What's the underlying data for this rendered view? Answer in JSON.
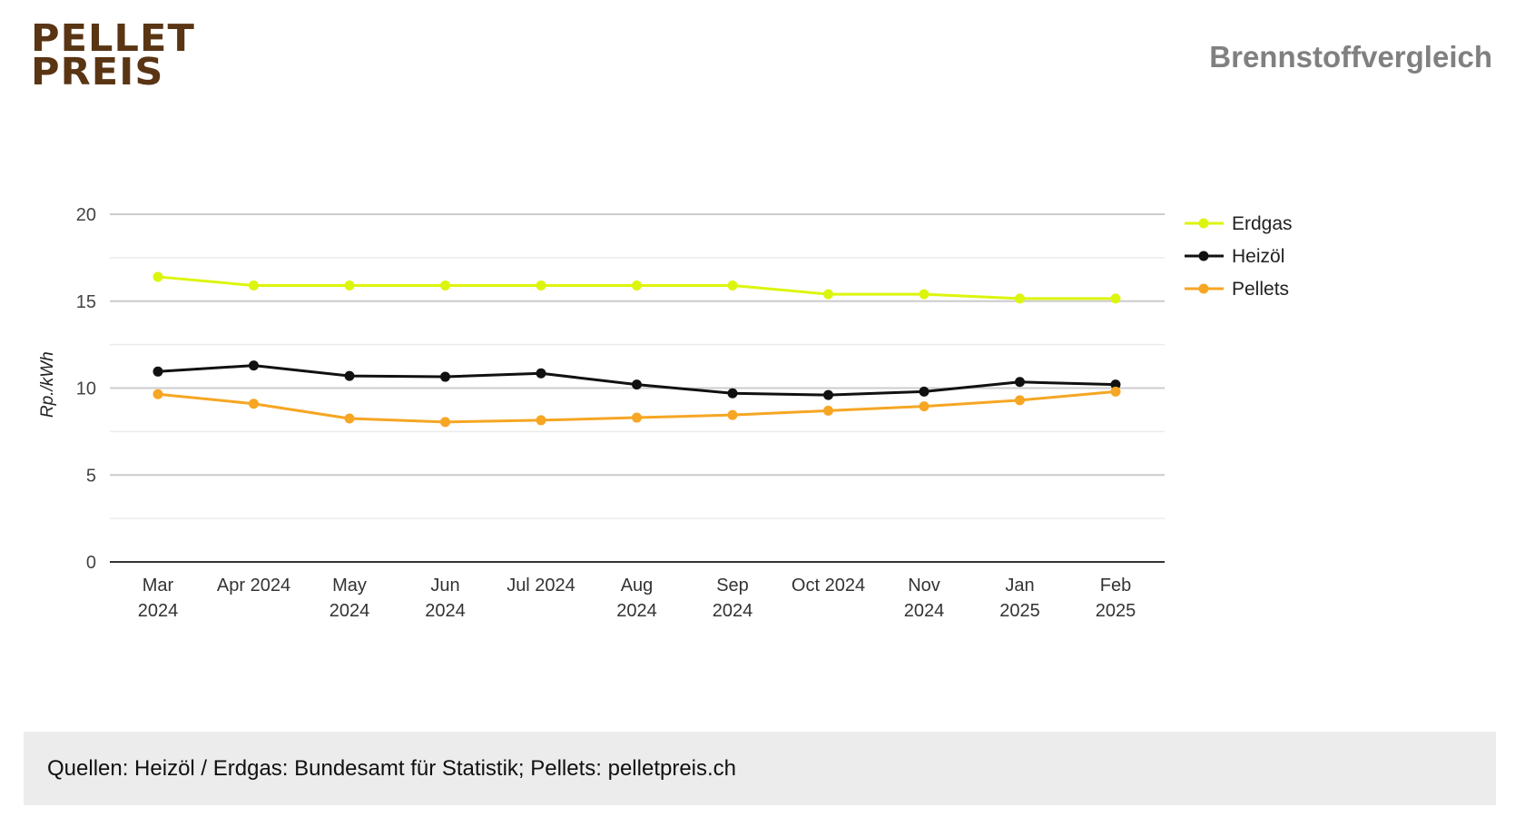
{
  "header": {
    "logo_line1": "PELLET",
    "logo_line2": "PREIS",
    "title": "Brennstoffvergleich"
  },
  "footer": {
    "sources": "Quellen: Heizöl / Erdgas: Bundesamt für Statistik; Pellets: pelletpreis.ch"
  },
  "chart_data": {
    "type": "line",
    "title": "Brennstoffvergleich",
    "xlabel": "",
    "ylabel": "Rp./kWh",
    "ylim": [
      0,
      20
    ],
    "yticks": [
      "0",
      "5",
      "10",
      "15",
      "20"
    ],
    "grid": true,
    "legend_position": "right",
    "categories": [
      [
        "Mar",
        "2024"
      ],
      [
        "Apr 2024"
      ],
      [
        "May",
        "2024"
      ],
      [
        "Jun",
        "2024"
      ],
      [
        "Jul 2024"
      ],
      [
        "Aug",
        "2024"
      ],
      [
        "Sep",
        "2024"
      ],
      [
        "Oct 2024"
      ],
      [
        "Nov",
        "2024"
      ],
      [
        "Jan",
        "2025"
      ],
      [
        "Feb",
        "2025"
      ]
    ],
    "series": [
      {
        "name": "Erdgas",
        "color": "#dcf50c",
        "values": [
          16.4,
          15.9,
          15.9,
          15.9,
          15.9,
          15.9,
          15.9,
          15.4,
          15.4,
          15.15,
          15.15
        ]
      },
      {
        "name": "Heizöl",
        "color": "#111111",
        "values": [
          10.95,
          11.3,
          10.7,
          10.65,
          10.85,
          10.2,
          9.7,
          9.6,
          9.8,
          10.35,
          10.2
        ]
      },
      {
        "name": "Pellets",
        "color": "#f6a623",
        "values": [
          9.65,
          9.1,
          8.25,
          8.05,
          8.15,
          8.3,
          8.45,
          8.7,
          8.95,
          9.3,
          9.8
        ]
      }
    ]
  }
}
